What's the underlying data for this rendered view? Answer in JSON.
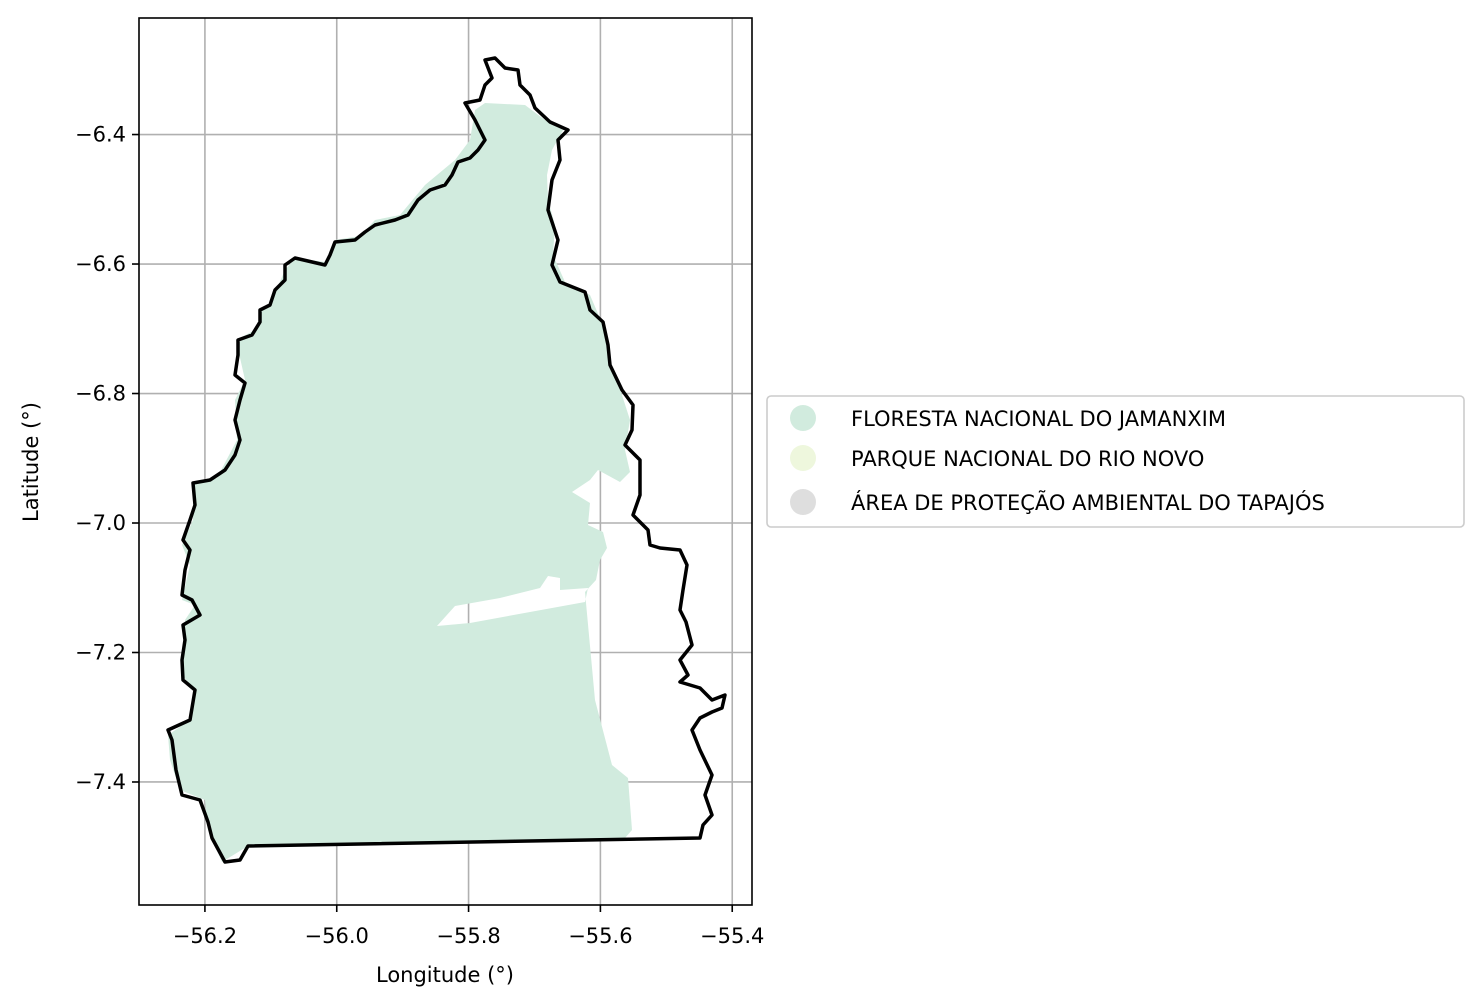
{
  "chart_data": {
    "type": "map",
    "xlabel": "Longitude (°)",
    "ylabel": "Latitude (°)",
    "xlim": [
      -56.3,
      -55.37
    ],
    "ylim": [
      -7.59,
      -6.22
    ],
    "xticks": [
      -56.2,
      -56.0,
      -55.8,
      -55.6,
      -55.4
    ],
    "yticks": [
      -6.4,
      -6.6,
      -6.8,
      -7.0,
      -7.2,
      -7.4
    ],
    "xtick_labels": [
      "−56.2",
      "−56.0",
      "−55.8",
      "−55.6",
      "−55.4"
    ],
    "ytick_labels": [
      "−6.4",
      "−6.6",
      "−6.8",
      "−7.0",
      "−7.2",
      "−7.4"
    ],
    "grid": true,
    "legend_placement": "center-left outside right",
    "boundary_color": "#000000",
    "grid_color": "#b0b0b0",
    "categories": [
      {
        "name": "FLORESTA NACIONAL DO JAMANXIM",
        "color": "#d1ebde"
      },
      {
        "name": "PARQUE NACIONAL DO RIO NOVO",
        "color": "#eef7dd"
      },
      {
        "name": "ÁREA DE PROTEÇÃO AMBIENTAL DO TAPAJÓS",
        "color": "#dedede"
      }
    ]
  }
}
